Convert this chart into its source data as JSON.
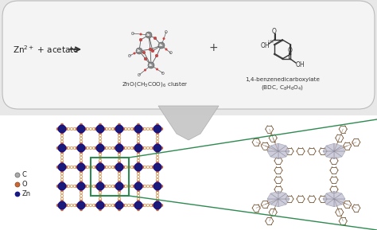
{
  "bg_color": "#e0e0e0",
  "top_panel_facecolor": "#f5f5f5",
  "top_panel_edgecolor": "#cccccc",
  "reactant_text": "Zn$^{2+}$ + acetate",
  "cluster_label": "ZnO(CH$_3$COO)$_6$ cluster",
  "bdc_label": "1,4-benzenedicarboxylate\n(BDC, C$_8$H$_6$O$_4$)",
  "plus_sign": "+",
  "legend_items": [
    {
      "color": "#888888",
      "label": "C"
    },
    {
      "color": "#cc6633",
      "label": "O"
    },
    {
      "color": "#1a1a7a",
      "label": "Zn"
    }
  ],
  "green_box_color": "#2d8a50",
  "node_color_zn": "#1a1a7a",
  "node_color_o": "#cc6633",
  "node_color_c": "#888888",
  "link_color": "#cc8844",
  "bottom_bg": "#ffffff",
  "arrow_gray": "#b0b0b0"
}
